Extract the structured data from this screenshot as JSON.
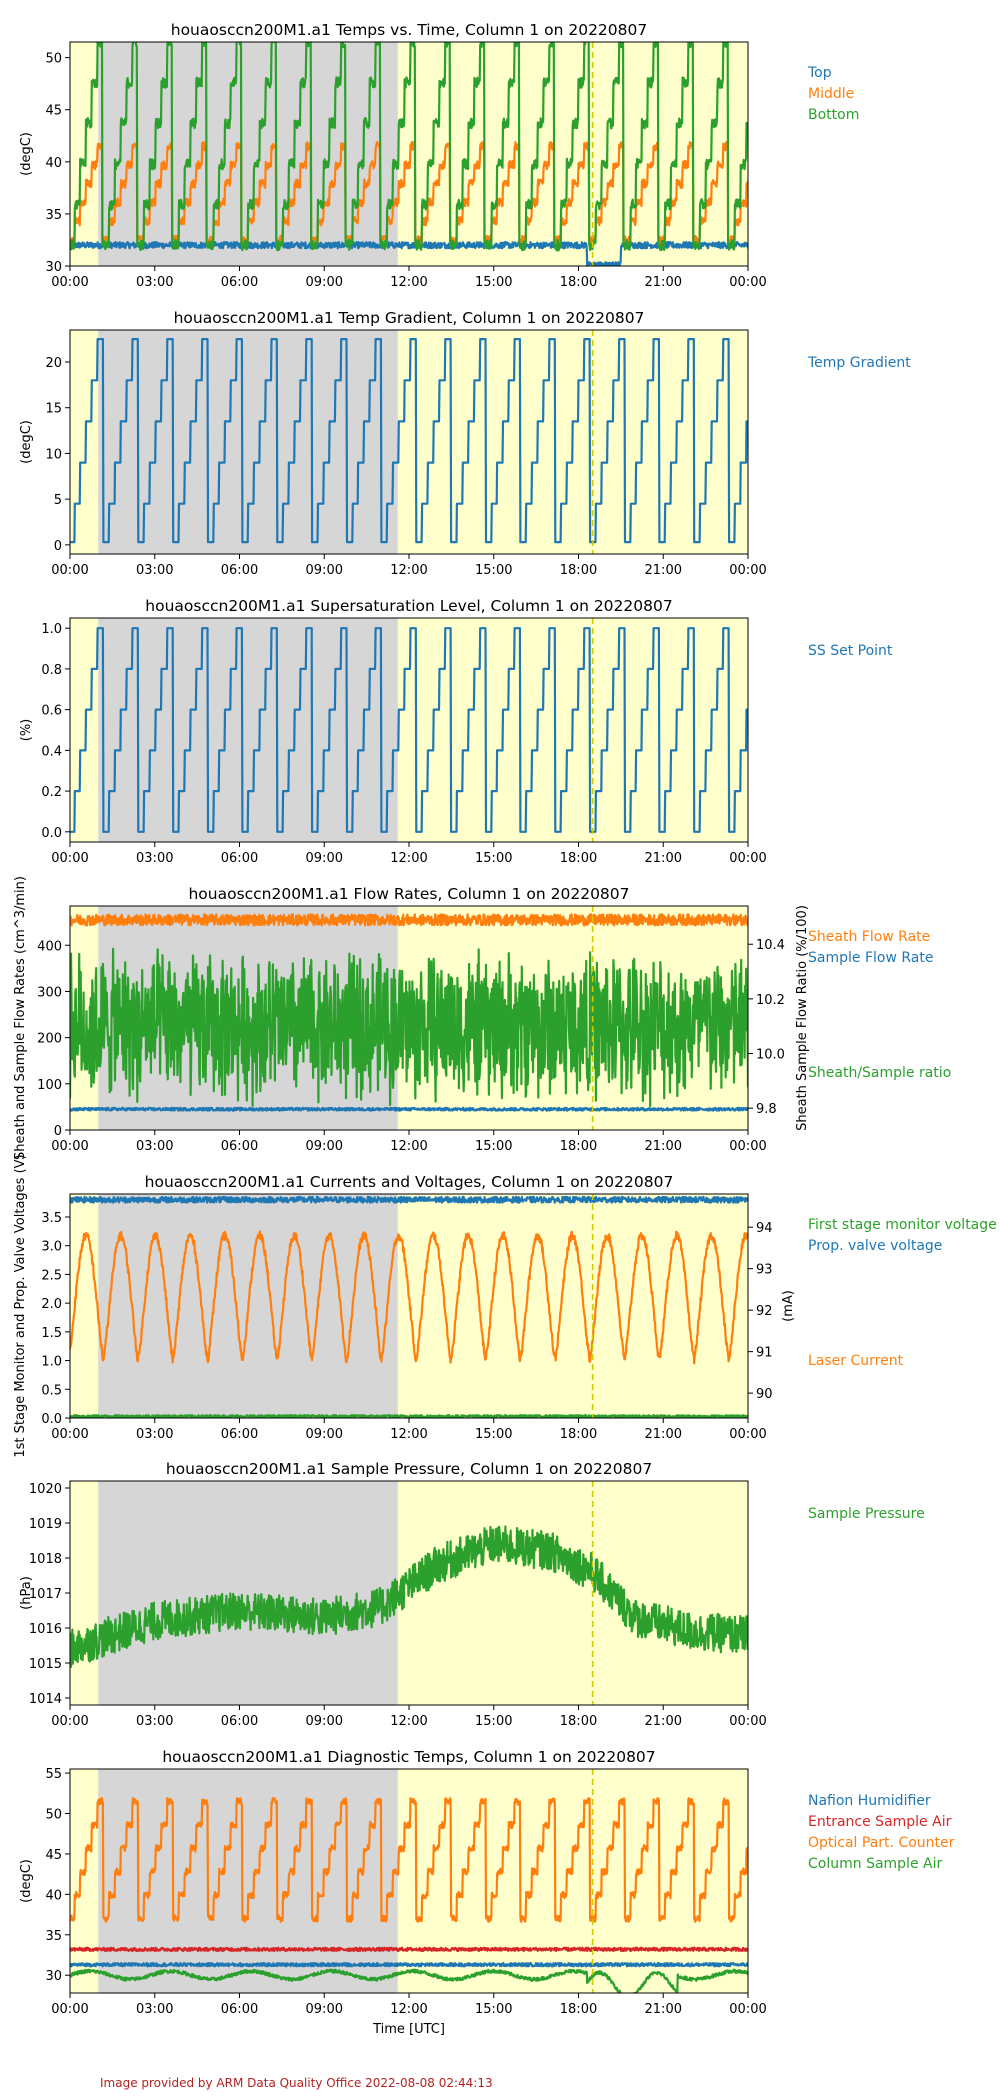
{
  "footer": "Image provided by ARM Data Quality Office 2022-08-08 02:44:13",
  "chart_data": [
    {
      "type": "line",
      "title": "houaosccn200M1.a1 Temps vs. Time, Column 1 on 20220807",
      "ylabel": "(degC)",
      "ylim": [
        30,
        51.5
      ],
      "yticks": [
        30,
        35,
        40,
        45,
        50
      ],
      "xticks": [
        "00:00",
        "03:00",
        "06:00",
        "09:00",
        "12:00",
        "15:00",
        "18:00",
        "21:00",
        "00:00"
      ],
      "shading": {
        "gray_hours": [
          1.0,
          11.6
        ],
        "yellow_hours": [
          0,
          24
        ]
      },
      "marker_hour": 18.5,
      "cycle_hours": 1.23,
      "series": [
        {
          "name": "Top",
          "color": "#1f77b4",
          "pattern": "flat",
          "base": 32.0,
          "amp": 0.0,
          "noise": 0.3,
          "dip": {
            "start": 18.3,
            "end": 19.5,
            "value": 30.2
          }
        },
        {
          "name": "Middle",
          "color": "#ff7f0e",
          "pattern": "stair",
          "min": 32.5,
          "max": 41.5,
          "noise": 0.4
        },
        {
          "name": "Bottom",
          "color": "#2ca02c",
          "pattern": "stair",
          "min": 32.0,
          "max": 51.5,
          "noise": 0.5
        }
      ]
    },
    {
      "type": "line",
      "title": "houaosccn200M1.a1 Temp Gradient, Column 1 on 20220807",
      "ylabel": "(degC)",
      "ylim": [
        -1,
        23.5
      ],
      "yticks": [
        0,
        5,
        10,
        15,
        20
      ],
      "xticks": [
        "00:00",
        "03:00",
        "06:00",
        "09:00",
        "12:00",
        "15:00",
        "18:00",
        "21:00",
        "00:00"
      ],
      "shading": {
        "gray_hours": [
          1.0,
          11.6
        ],
        "yellow_hours": [
          0,
          24
        ]
      },
      "marker_hour": 18.5,
      "cycle_hours": 1.23,
      "series": [
        {
          "name": "Temp Gradient",
          "color": "#1f77b4",
          "pattern": "steps",
          "levels": [
            0.3,
            4.5,
            9.0,
            13.5,
            18.0,
            22.5
          ],
          "noise": 0.0
        }
      ]
    },
    {
      "type": "line",
      "title": "houaosccn200M1.a1 Supersaturation Level, Column 1 on 20220807",
      "ylabel": "(%)",
      "ylim": [
        -0.05,
        1.05
      ],
      "yticks": [
        0.0,
        0.2,
        0.4,
        0.6,
        0.8,
        1.0
      ],
      "xticks": [
        "00:00",
        "03:00",
        "06:00",
        "09:00",
        "12:00",
        "15:00",
        "18:00",
        "21:00",
        "00:00"
      ],
      "shading": {
        "gray_hours": [
          1.0,
          11.6
        ],
        "yellow_hours": [
          0,
          24
        ]
      },
      "marker_hour": 18.5,
      "cycle_hours": 1.23,
      "series": [
        {
          "name": "SS Set Point",
          "color": "#1f77b4",
          "pattern": "steps",
          "levels": [
            0.0,
            0.2,
            0.4,
            0.6,
            0.8,
            1.0
          ],
          "noise": 0.0
        }
      ]
    },
    {
      "type": "line",
      "title": "houaosccn200M1.a1 Flow Rates, Column 1 on 20220807",
      "ylabel": "Sheath and Sample Flow Rates (cm^3/min)",
      "ylabel_right": "Sheath Sample Flow Ratio (%/100)",
      "ylim": [
        0,
        485
      ],
      "yticks": [
        0,
        100,
        200,
        300,
        400
      ],
      "ylim_right": [
        9.72,
        10.54
      ],
      "yticks_right": [
        9.8,
        10.0,
        10.2,
        10.4
      ],
      "xticks": [
        "00:00",
        "03:00",
        "06:00",
        "09:00",
        "12:00",
        "15:00",
        "18:00",
        "21:00",
        "00:00"
      ],
      "shading": {
        "gray_hours": [
          1.0,
          11.6
        ],
        "yellow_hours": [
          0,
          24
        ]
      },
      "marker_hour": 18.5,
      "series": [
        {
          "name": "Sheath Flow Rate",
          "color": "#ff7f0e",
          "pattern": "flat",
          "base": 455,
          "noise": 12
        },
        {
          "name": "Sample Flow Rate",
          "color": "#1f77b4",
          "pattern": "flat",
          "base": 45,
          "noise": 3
        },
        {
          "name": "Sheath/Sample ratio",
          "color": "#2ca02c",
          "pattern": "noisy",
          "axis": "right",
          "base": 10.1,
          "noise": 0.25
        }
      ]
    },
    {
      "type": "line",
      "title": "houaosccn200M1.a1 Currents and Voltages, Column 1 on 20220807",
      "ylabel": "1st Stage Monitor and Prop. Valve Voltages (V)",
      "ylabel_right": "(mA)",
      "ylim": [
        0,
        3.9
      ],
      "yticks": [
        0.0,
        0.5,
        1.0,
        1.5,
        2.0,
        2.5,
        3.0,
        3.5
      ],
      "ylim_right": [
        89.4,
        94.8
      ],
      "yticks_right": [
        90,
        91,
        92,
        93,
        94
      ],
      "xticks": [
        "00:00",
        "03:00",
        "06:00",
        "09:00",
        "12:00",
        "15:00",
        "18:00",
        "21:00",
        "00:00"
      ],
      "shading": {
        "gray_hours": [
          1.0,
          11.6
        ],
        "yellow_hours": [
          0,
          24
        ]
      },
      "marker_hour": 18.5,
      "cycle_hours": 1.23,
      "series": [
        {
          "name": "First stage monitor voltage",
          "color": "#2ca02c",
          "pattern": "flat",
          "base": 0.03,
          "noise": 0.02
        },
        {
          "name": "Prop. valve voltage",
          "color": "#1f77b4",
          "pattern": "flat",
          "base": 3.8,
          "noise": 0.05
        },
        {
          "name": "Laser Current",
          "color": "#ff7f0e",
          "pattern": "wave",
          "axis": "right",
          "min": 90.8,
          "max": 93.8,
          "noise": 0.1
        }
      ]
    },
    {
      "type": "line",
      "title": "houaosccn200M1.a1 Sample Pressure, Column 1 on 20220807",
      "ylabel": "(hPa)",
      "ylim": [
        1013.8,
        1020.2
      ],
      "yticks": [
        1014,
        1015,
        1016,
        1017,
        1018,
        1019,
        1020
      ],
      "xticks": [
        "00:00",
        "03:00",
        "06:00",
        "09:00",
        "12:00",
        "15:00",
        "18:00",
        "21:00",
        "00:00"
      ],
      "shading": {
        "gray_hours": [
          1.0,
          11.6
        ],
        "yellow_hours": [
          0,
          24
        ]
      },
      "marker_hour": 18.5,
      "series": [
        {
          "name": "Sample Pressure",
          "color": "#2ca02c",
          "pattern": "trend",
          "trend": [
            [
              0,
              1015.4
            ],
            [
              3,
              1016.2
            ],
            [
              6,
              1016.5
            ],
            [
              9,
              1016.3
            ],
            [
              11,
              1016.6
            ],
            [
              13,
              1017.8
            ],
            [
              15,
              1018.4
            ],
            [
              17,
              1018.2
            ],
            [
              18.5,
              1017.6
            ],
            [
              20,
              1016.3
            ],
            [
              22,
              1015.9
            ],
            [
              24,
              1015.8
            ]
          ],
          "noise": 0.55
        }
      ]
    },
    {
      "type": "line",
      "title": "houaosccn200M1.a1 Diagnostic Temps, Column 1 on 20220807",
      "ylabel": "(degC)",
      "xlabel": "Time [UTC]",
      "ylim": [
        27.8,
        55.5
      ],
      "yticks": [
        30,
        35,
        40,
        45,
        50,
        55
      ],
      "xticks": [
        "00:00",
        "03:00",
        "06:00",
        "09:00",
        "12:00",
        "15:00",
        "18:00",
        "21:00",
        "00:00"
      ],
      "shading": {
        "gray_hours": [
          1.0,
          11.6
        ],
        "yellow_hours": [
          0,
          24
        ]
      },
      "marker_hour": 18.5,
      "cycle_hours": 1.23,
      "series": [
        {
          "name": "Nafion Humidifier",
          "color": "#1f77b4",
          "pattern": "flat",
          "base": 31.3,
          "noise": 0.2
        },
        {
          "name": "Entrance Sample Air",
          "color": "#d62728",
          "pattern": "flat",
          "base": 33.2,
          "noise": 0.2
        },
        {
          "name": "Optical Part. Counter",
          "color": "#ff7f0e",
          "pattern": "sawhi",
          "min": 37.0,
          "max": 51.5,
          "noise": 0.4
        },
        {
          "name": "Column Sample Air",
          "color": "#2ca02c",
          "pattern": "wobble",
          "base": 30.0,
          "amp": 0.5,
          "noise": 0.2
        }
      ]
    }
  ]
}
